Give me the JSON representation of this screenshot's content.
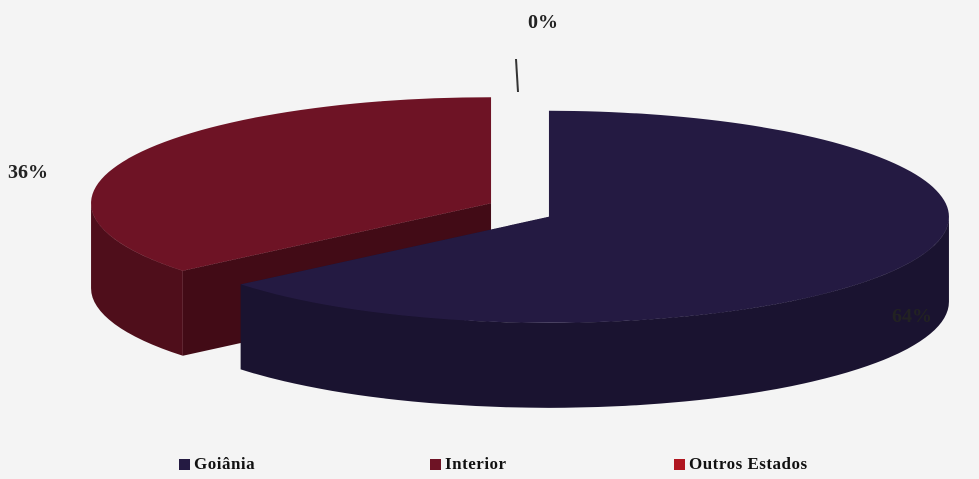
{
  "chart_data": {
    "type": "pie",
    "style": "3D exploded",
    "title": "",
    "slices": [
      {
        "name": "Goiânia",
        "value": 64,
        "label": "64%",
        "color": "#241a42"
      },
      {
        "name": "Interior",
        "value": 36,
        "label": "36%",
        "color": "#6e1325"
      },
      {
        "name": "Outros Estados",
        "value": 0,
        "label": "0%",
        "color": "#b01620"
      }
    ],
    "legend_position": "bottom"
  }
}
